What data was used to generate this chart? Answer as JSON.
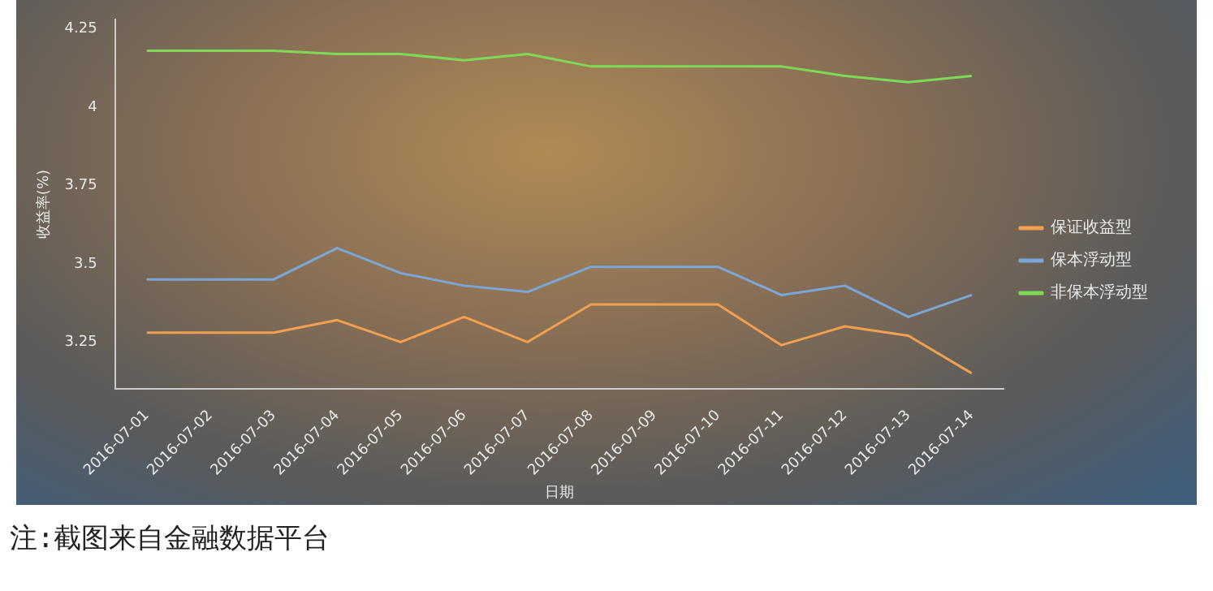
{
  "chart_data": {
    "type": "line",
    "xlabel": "日期",
    "ylabel": "收益率(%)",
    "categories": [
      "2016-07-01",
      "2016-07-02",
      "2016-07-03",
      "2016-07-04",
      "2016-07-05",
      "2016-07-06",
      "2016-07-07",
      "2016-07-08",
      "2016-07-09",
      "2016-07-10",
      "2016-07-11",
      "2016-07-12",
      "2016-07-13",
      "2016-07-14"
    ],
    "series": [
      {
        "name": "保证收益型",
        "color": "#f0a050",
        "values": [
          3.28,
          3.28,
          3.28,
          3.32,
          3.25,
          3.33,
          3.25,
          3.37,
          3.37,
          3.37,
          3.24,
          3.3,
          3.27,
          3.15
        ]
      },
      {
        "name": "保本浮动型",
        "color": "#7ba7d6",
        "values": [
          3.45,
          3.45,
          3.45,
          3.55,
          3.47,
          3.43,
          3.41,
          3.49,
          3.49,
          3.49,
          3.4,
          3.43,
          3.33,
          3.4
        ]
      },
      {
        "name": "非保本浮动型",
        "color": "#7ed957",
        "values": [
          4.18,
          4.18,
          4.18,
          4.17,
          4.17,
          4.15,
          4.17,
          4.13,
          4.13,
          4.13,
          4.13,
          4.1,
          4.08,
          4.1
        ]
      }
    ],
    "ylim": [
      3.1,
      4.28
    ],
    "yticks": [
      3.25,
      3.5,
      3.75,
      4,
      4.25
    ],
    "grid": false,
    "legend": "right",
    "marker": "none",
    "line_style": "solid",
    "annotations": [
      "注:截图来自金融数据平台"
    ]
  }
}
